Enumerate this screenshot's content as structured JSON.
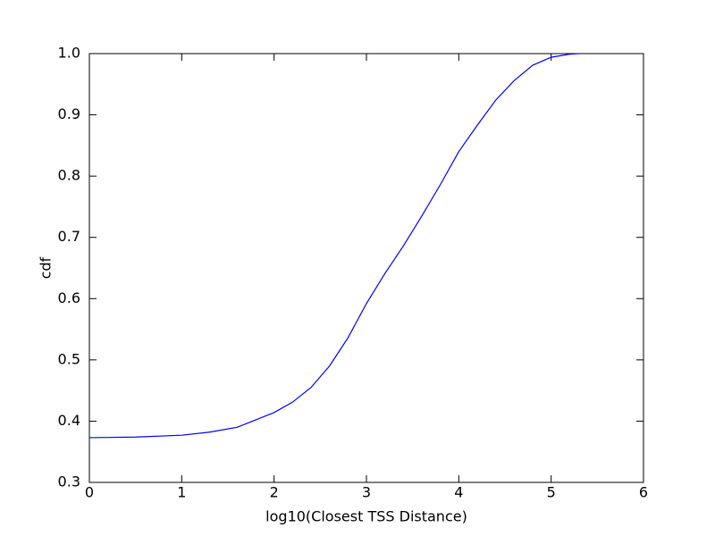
{
  "chart_data": {
    "type": "line",
    "xlabel": "log10(Closest TSS Distance)",
    "ylabel": "cdf",
    "x": [
      0,
      0.5,
      1,
      1.3,
      1.6,
      2,
      2.2,
      2.4,
      2.6,
      2.8,
      3,
      3.2,
      3.4,
      3.6,
      3.8,
      4,
      4.2,
      4.4,
      4.6,
      4.8,
      5,
      5.2,
      5.3
    ],
    "values": [
      0.373,
      0.374,
      0.377,
      0.382,
      0.39,
      0.414,
      0.431,
      0.455,
      0.49,
      0.536,
      0.592,
      0.641,
      0.686,
      0.735,
      0.786,
      0.84,
      0.883,
      0.924,
      0.956,
      0.981,
      0.994,
      0.999,
      1
    ],
    "color": "#0000ff",
    "xlim": [
      0,
      6
    ],
    "xticks": [
      0,
      1,
      2,
      3,
      4,
      5,
      6
    ],
    "ylim": [
      0.3,
      1
    ],
    "yticks": [
      0.3,
      0.4,
      0.5,
      0.6,
      0.7,
      0.8,
      0.9,
      {
        "value": 1,
        "label": "1.0"
      }
    ],
    "grid": false
  }
}
